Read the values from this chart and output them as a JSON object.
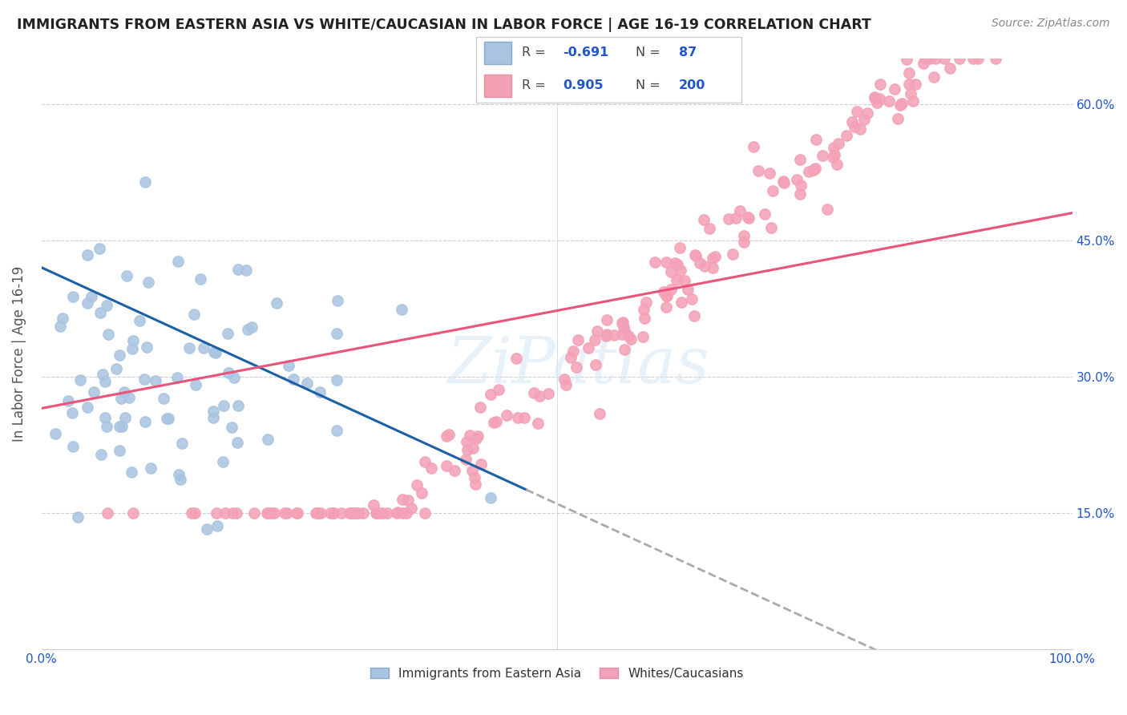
{
  "title": "IMMIGRANTS FROM EASTERN ASIA VS WHITE/CAUCASIAN IN LABOR FORCE | AGE 16-19 CORRELATION CHART",
  "source": "Source: ZipAtlas.com",
  "ylabel": "In Labor Force | Age 16-19",
  "blue_R": -0.691,
  "blue_N": 87,
  "pink_R": 0.905,
  "pink_N": 200,
  "blue_color": "#a8c4e0",
  "pink_color": "#f4a0b5",
  "blue_line_color": "#1a5fa8",
  "pink_line_color": "#e8547a",
  "blue_label": "Immigrants from Eastern Asia",
  "pink_label": "Whites/Caucasians",
  "xlim": [
    0.0,
    1.0
  ],
  "ylim": [
    0.0,
    0.65
  ],
  "watermark": "ZiPatlas",
  "legend_text_color": "#2255cc",
  "blue_seed": 42,
  "pink_seed": 99
}
